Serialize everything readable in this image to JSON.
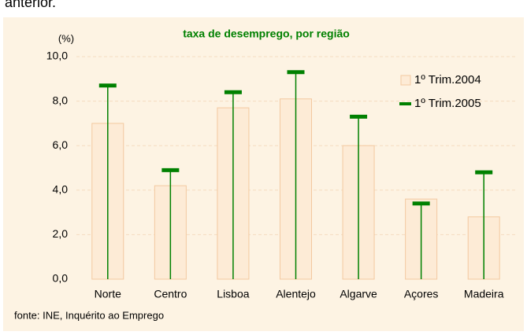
{
  "header_text": "anterior.",
  "chart_data": {
    "type": "bar",
    "title": "taxa de desemprego, por região",
    "y_unit": "(%)",
    "source": "fonte: INE, Inquérito ao Emprego",
    "categories": [
      "Norte",
      "Centro",
      "Lisboa",
      "Alentejo",
      "Algarve",
      "Açores",
      "Madeira"
    ],
    "series": [
      {
        "name": "1º Trim.2004",
        "type": "bar",
        "color": "#fdebd6",
        "values": [
          7.0,
          4.2,
          7.7,
          8.1,
          6.0,
          3.6,
          2.8
        ]
      },
      {
        "name": "1º Trim.2005",
        "type": "stem",
        "color": "#008000",
        "values": [
          8.7,
          4.9,
          8.4,
          9.3,
          7.3,
          3.4,
          4.8
        ]
      }
    ],
    "ylim": [
      0,
      10
    ],
    "yticks": [
      {
        "value": 0,
        "label": "0,0"
      },
      {
        "value": 2,
        "label": "2,0"
      },
      {
        "value": 4,
        "label": "4,0"
      },
      {
        "value": 6,
        "label": "6,0"
      },
      {
        "value": 8,
        "label": "8,0"
      },
      {
        "value": 10,
        "label": "10,0"
      }
    ],
    "grid": true,
    "legend": "upper right"
  }
}
